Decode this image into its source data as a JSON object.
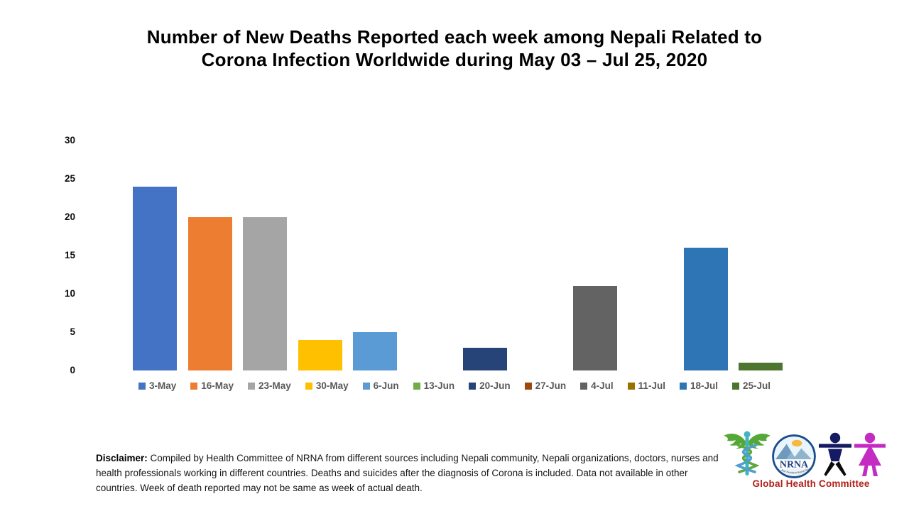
{
  "title_lines": [
    "Number of New Deaths Reported each week among Nepali Related to",
    "Corona Infection Worldwide during May 03 – Jul 25, 2020"
  ],
  "chart_data": {
    "type": "bar",
    "title": "Number of New Deaths Reported each week among Nepali Related to Corona Infection Worldwide during May 03 – Jul 25, 2020",
    "categories": [
      "3-May",
      "16-May",
      "23-May",
      "30-May",
      "6-Jun",
      "13-Jun",
      "20-Jun",
      "27-Jun",
      "4-Jul",
      "11-Jul",
      "18-Jul",
      "25-Jul"
    ],
    "values": [
      24,
      20,
      20,
      4,
      5,
      0,
      3,
      0,
      11,
      0,
      16,
      1
    ],
    "colors": [
      "#4472C4",
      "#ED7D31",
      "#A5A5A5",
      "#FFC000",
      "#5B9BD5",
      "#70AD47",
      "#264478",
      "#9E480E",
      "#636363",
      "#997300",
      "#2E75B6",
      "#4E7530"
    ],
    "xlabel": "",
    "ylabel": "",
    "ylim": [
      0,
      30
    ],
    "yticks": [
      0,
      5,
      10,
      15,
      20,
      25,
      30
    ],
    "grid": false,
    "legend_position": "bottom"
  },
  "disclaimer": {
    "label": "Disclaimer:",
    "text": " Compiled by Health Committee of NRNA from different sources including Nepali community, Nepali organizations, doctors, nurses and health professionals working in different countries. Deaths and suicides after the diagnosis of Corona is included. Data not available in other countries. Week of death reported may not be same as week of actual death."
  },
  "footer": {
    "committee": "Global Health Committee",
    "nrna_label": "NRNA",
    "nrna_sub": "Non Resident Nepali Association",
    "committee_color": "#B02018",
    "logos": [
      "caduceus-icon",
      "nrna-logo",
      "male-figure-icon",
      "female-figure-icon"
    ]
  }
}
